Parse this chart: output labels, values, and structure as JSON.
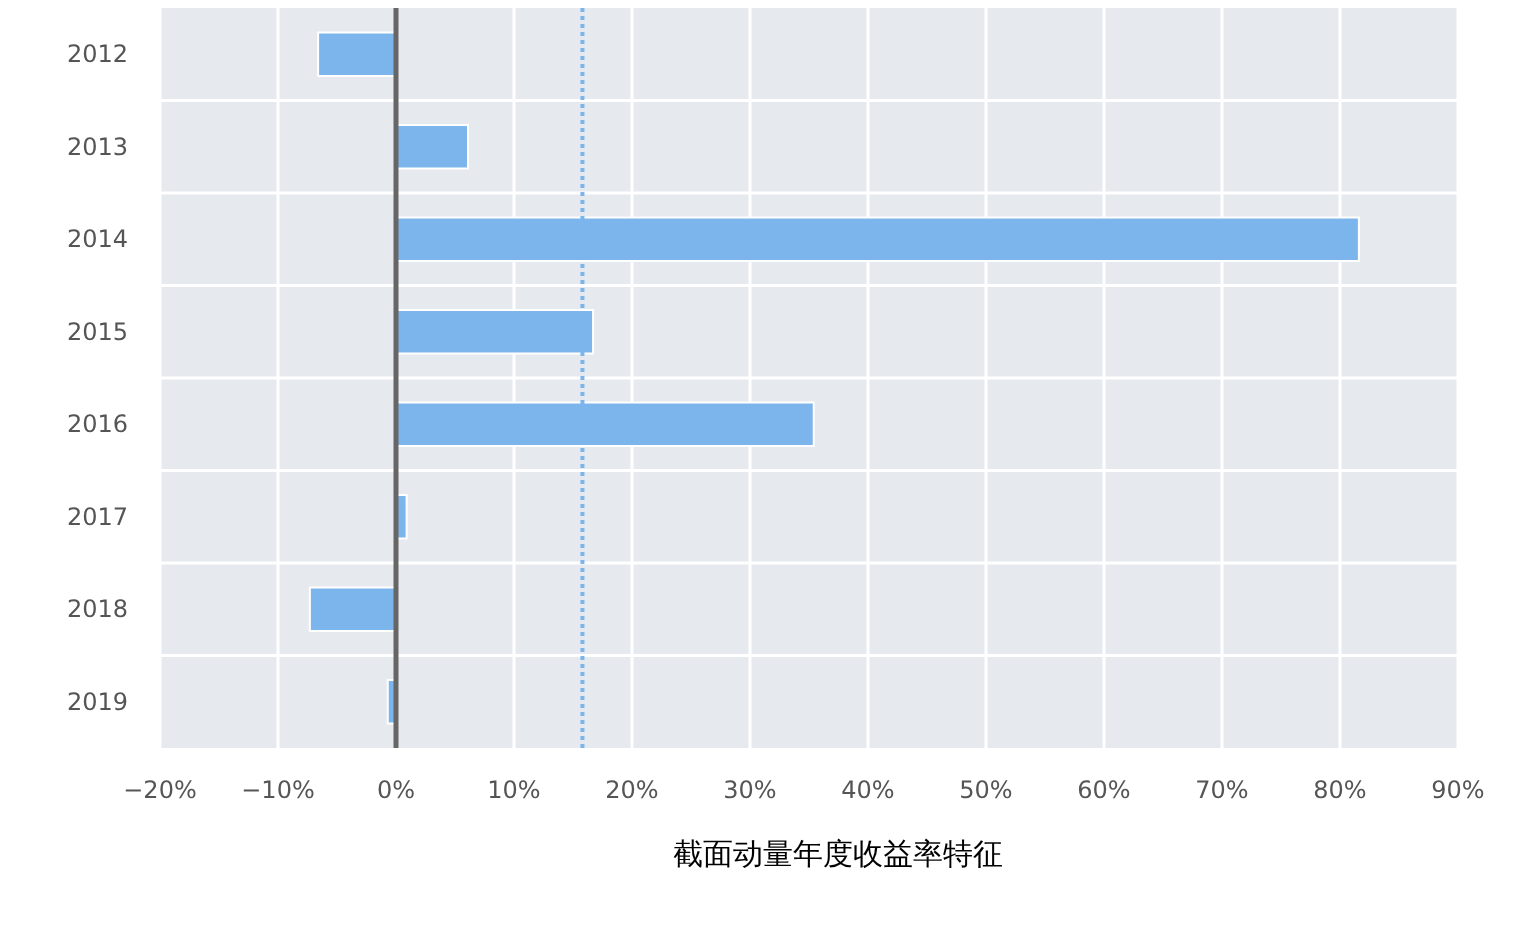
{
  "chart_data": {
    "type": "bar",
    "orientation": "horizontal",
    "title": "截面动量年度收益率特征",
    "categories": [
      "2012",
      "2013",
      "2014",
      "2015",
      "2016",
      "2017",
      "2018",
      "2019"
    ],
    "values": [
      -6.6,
      6.1,
      81.6,
      16.7,
      35.4,
      0.9,
      -7.3,
      -0.7
    ],
    "color": "#7cb5ec",
    "xlim": [
      -20,
      90
    ],
    "xticks": [
      {
        "value": -20,
        "label": "−20%"
      },
      {
        "value": -10,
        "label": "−10%"
      },
      {
        "value": 0,
        "label": "0%"
      },
      {
        "value": 10,
        "label": "10%"
      },
      {
        "value": 20,
        "label": "20%"
      },
      {
        "value": 30,
        "label": "30%"
      },
      {
        "value": 40,
        "label": "40%"
      },
      {
        "value": 50,
        "label": "50%"
      },
      {
        "value": 60,
        "label": "60%"
      },
      {
        "value": 70,
        "label": "70%"
      },
      {
        "value": 80,
        "label": "80%"
      },
      {
        "value": 90,
        "label": "90%"
      }
    ],
    "ref_lines": [
      {
        "axis": "x",
        "value": 0,
        "color": "#666666",
        "line_style": "solid"
      },
      {
        "axis": "x",
        "value": 15.8,
        "color": "#7cb5ec",
        "line_style": "dotted"
      }
    ],
    "grid": true
  }
}
